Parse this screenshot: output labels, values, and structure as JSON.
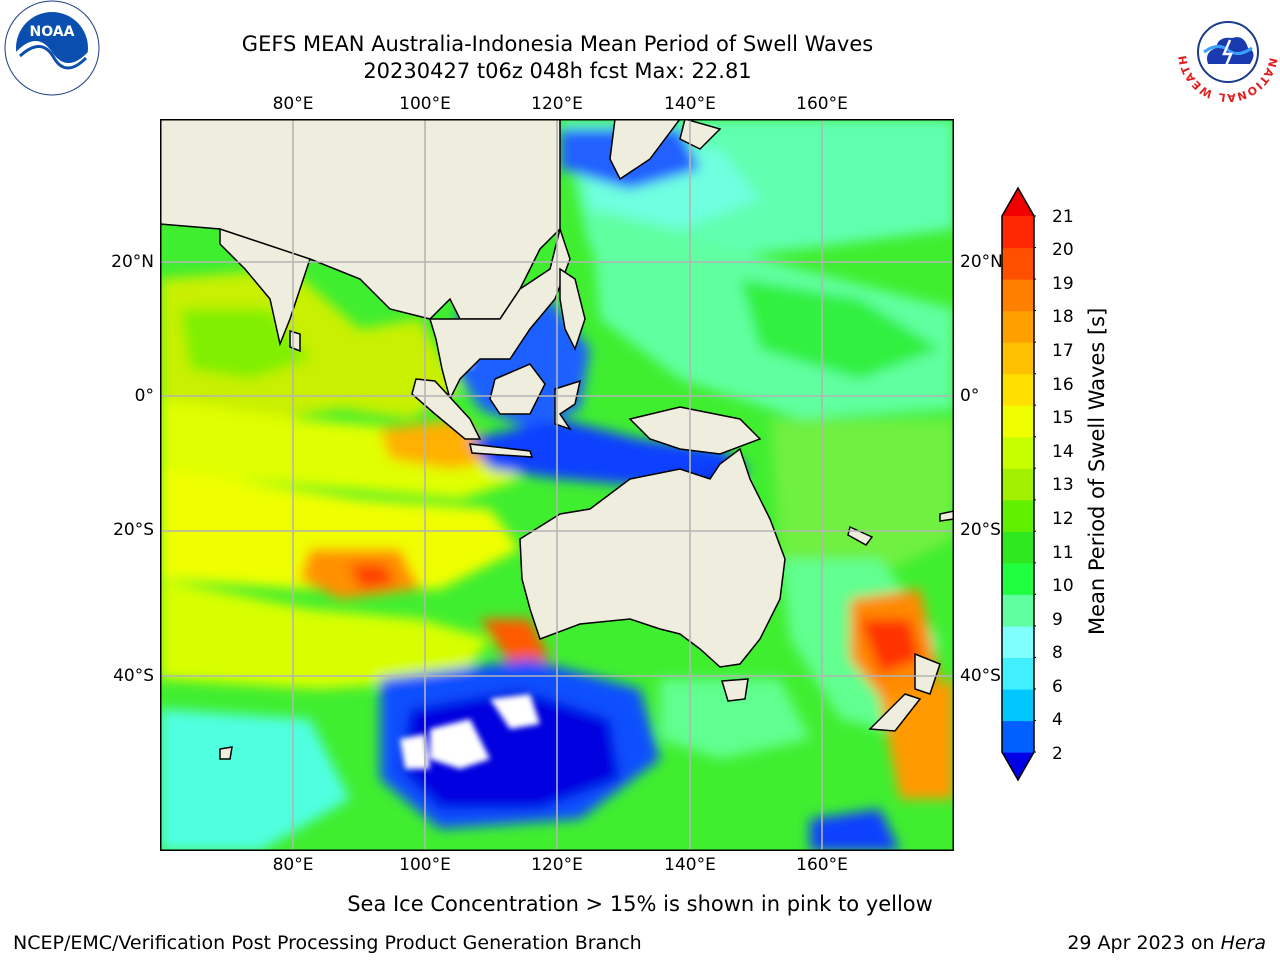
{
  "header": {
    "title_line1": "GEFS MEAN Australia-Indonesia Mean Period of Swell Waves",
    "title_line2": "20230427 t06z 048h fcst   Max: 22.81"
  },
  "map": {
    "lon_labels": [
      "80°E",
      "100°E",
      "120°E",
      "140°E",
      "160°E"
    ],
    "lat_labels": [
      "20°N",
      "0°",
      "20°S",
      "40°S"
    ]
  },
  "colorbar": {
    "label": "Mean Period of Swell Waves [s]",
    "ticks": [
      "21",
      "20",
      "19",
      "18",
      "17",
      "16",
      "15",
      "14",
      "13",
      "12",
      "11",
      "10",
      "9",
      "8",
      "6",
      "4",
      "2"
    ],
    "colors": [
      "#0000e6",
      "#0060ff",
      "#00c8ff",
      "#40f0ff",
      "#80ffff",
      "#60ffa0",
      "#20ff40",
      "#30e820",
      "#60f000",
      "#a0f000",
      "#c8ff00",
      "#f0ff00",
      "#ffe000",
      "#ffc000",
      "#ffa000",
      "#ff8000",
      "#ff5000",
      "#ff2800",
      "#f00000"
    ]
  },
  "note": "Sea Ice Concentration > 15% is shown in pink to yellow",
  "footer": {
    "left": "NCEP/EMC/Verification Post Processing Product Generation Branch",
    "date": "29 Apr 2023 on ",
    "machine": "Hera"
  },
  "logos": {
    "noaa_text": "NOAA",
    "nws_text": "NATIONAL WEATHER SERVICE"
  }
}
